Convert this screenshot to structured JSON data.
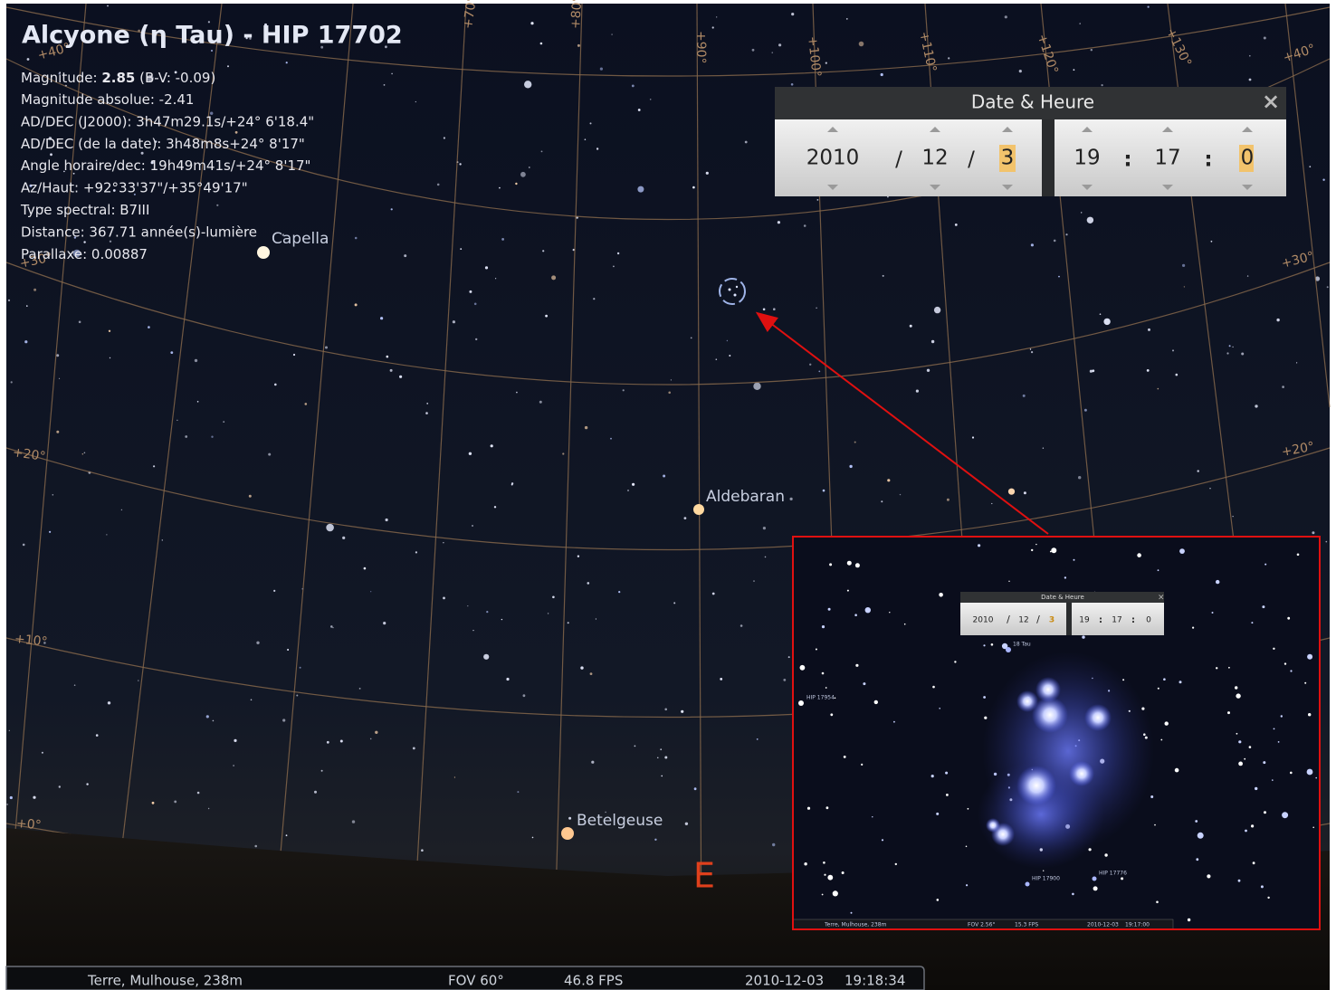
{
  "title": "Alcyone (η Tau) - HIP 17702",
  "info": {
    "magnitude_label": "Magnitude:",
    "magnitude_value": "2.85",
    "magnitude_bv": "(B-V: -0.09)",
    "lines": [
      "Magnitude absolue: -2.41",
      "AD/DEC (J2000): 3h47m29.1s/+24° 6'18.4\"",
      "AD/DEC (de la date): 3h48m8s+24° 8'17\"",
      "Angle horaire/dec: 19h49m41s/+24° 8'17\"",
      "Az/Haut: +92°33'37\"/+35°49'17\"",
      "Type spectral: B7III",
      "Distance: 367.71 année(s)-lumière",
      "Parallaxe: 0.00887"
    ]
  },
  "sky_labels": {
    "stars": [
      "Capella",
      "Aldebaran",
      "Betelgeuse"
    ],
    "compass": "E",
    "grid": [
      "+40°",
      "+70°",
      "+80°",
      "+90°",
      "+100°",
      "+110°",
      "+120°",
      "+130°",
      "+40°",
      "+30°",
      "+30°",
      "+20°",
      "+20°",
      "+10°",
      "+0°"
    ]
  },
  "date_dialog": {
    "title": "Date & Heure",
    "year": "2010",
    "month": "12",
    "day": "3",
    "hour": "19",
    "minute": "17",
    "second": "0",
    "date_separator": "/",
    "time_separator": ":"
  },
  "status_bar": {
    "location": "Terre, Mulhouse, 238m",
    "fov": "FOV 60°",
    "fps": "46.8 FPS",
    "date": "2010-12-03",
    "time": "19:18:34"
  },
  "inset": {
    "star_labels": [
      "18 Tau",
      "HIP 17954",
      "HIP 17900",
      "HIP 17776"
    ],
    "date_dialog": {
      "title": "Date & Heure",
      "year": "2010",
      "month": "12",
      "day": "3",
      "hour": "19",
      "minute": "17",
      "second": "0"
    },
    "status_bar": {
      "location": "Terre, Mulhouse, 238m",
      "fov": "FOV 2.56°",
      "fps": "15.3 FPS",
      "date": "2010-12-03",
      "time": "19:17:00"
    }
  }
}
